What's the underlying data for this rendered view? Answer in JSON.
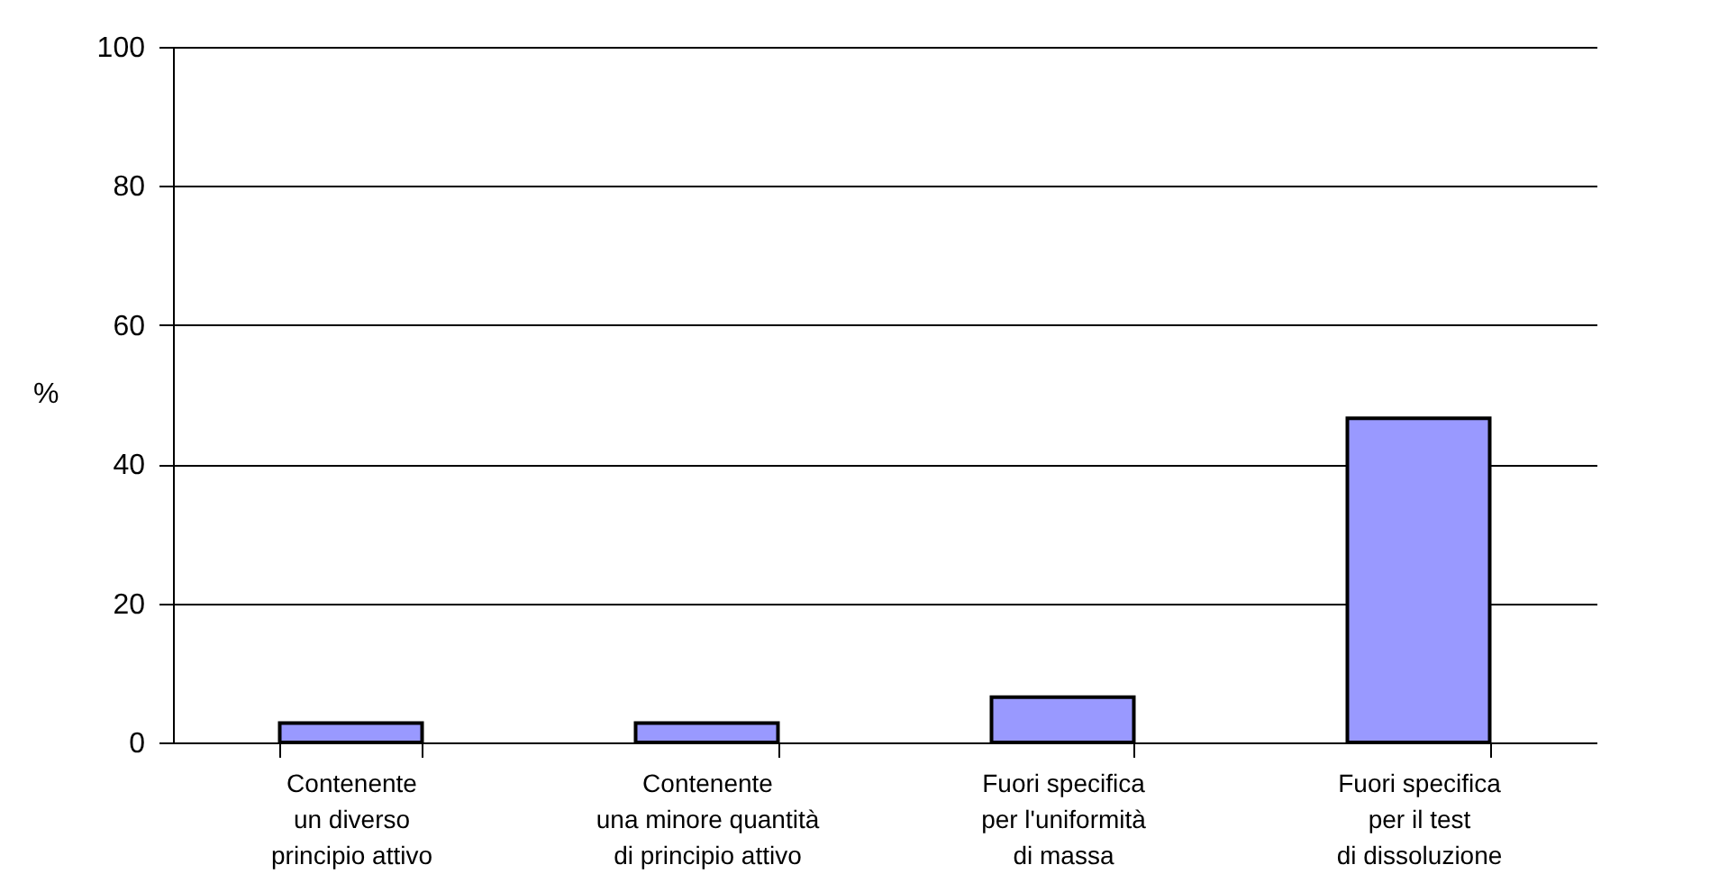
{
  "chart_data": {
    "type": "bar",
    "ylabel": "%",
    "categories": [
      "Contenente\nun diverso\nprincipio attivo",
      "Contenente\nuna minore quantità\ndi principio attivo",
      "Fuori specifica\nper l'uniformità\ndi massa",
      "Fuori specifica\nper il test\ndi dissoluzione"
    ],
    "values": [
      2.8,
      2.8,
      6.5,
      46.6
    ],
    "color": "#9999ff",
    "ylim": [
      0,
      100
    ],
    "yticks": [
      0,
      20,
      40,
      60,
      80,
      100
    ],
    "grid": "y"
  }
}
